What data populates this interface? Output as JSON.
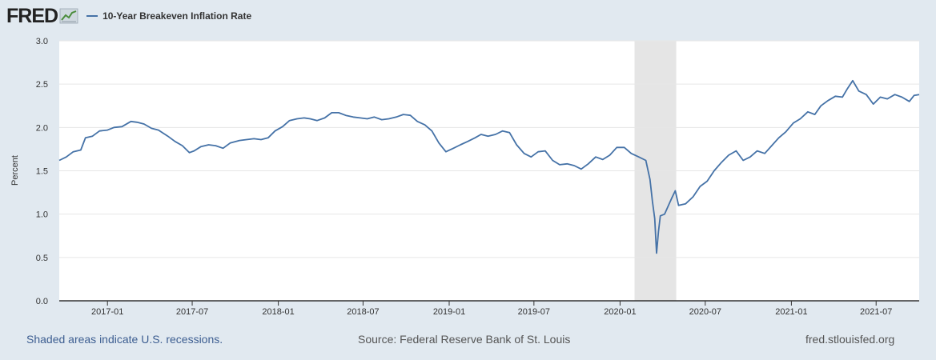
{
  "header": {
    "logo_text": "FRED",
    "logo_icon": "line-chart-icon",
    "legend_label": "10-Year Breakeven Inflation Rate"
  },
  "footer": {
    "recession_note": "Shaded areas indicate U.S. recessions.",
    "source": "Source: Federal Reserve Bank of St. Louis",
    "url": "fred.stlouisfed.org"
  },
  "colors": {
    "series": "#4572a7",
    "background": "#e1e9f0",
    "plot": "#ffffff",
    "recession": "#e5e5e5"
  },
  "chart_data": {
    "type": "line",
    "ylabel": "Percent",
    "ylim": [
      0.0,
      3.0
    ],
    "yticks": [
      0.0,
      0.5,
      1.0,
      1.5,
      2.0,
      2.5,
      3.0
    ],
    "ytick_labels": [
      "0.0",
      "0.5",
      "1.0",
      "1.5",
      "2.0",
      "2.5",
      "3.0"
    ],
    "xlim": [
      "2016-09-20",
      "2021-10-01"
    ],
    "xticks": [
      "2017-01-01",
      "2017-07-01",
      "2018-01-01",
      "2018-07-01",
      "2019-01-01",
      "2019-07-01",
      "2020-01-01",
      "2020-07-01",
      "2021-01-01",
      "2021-07-01"
    ],
    "xtick_labels": [
      "2017-01",
      "2017-07",
      "2018-01",
      "2018-07",
      "2019-01",
      "2019-07",
      "2020-01",
      "2020-07",
      "2021-01",
      "2021-07"
    ],
    "grid": "horizontal",
    "legend_placement": "top-left",
    "recessions": [
      [
        "2020-02-01",
        "2020-04-30"
      ]
    ],
    "series": [
      {
        "name": "10-Year Breakeven Inflation Rate",
        "color": "#4572a7",
        "points": [
          [
            "2016-09-20",
            1.62
          ],
          [
            "2016-10-05",
            1.66
          ],
          [
            "2016-10-20",
            1.72
          ],
          [
            "2016-11-05",
            1.74
          ],
          [
            "2016-11-15",
            1.88
          ],
          [
            "2016-11-30",
            1.9
          ],
          [
            "2016-12-15",
            1.96
          ],
          [
            "2017-01-01",
            1.97
          ],
          [
            "2017-01-15",
            2.0
          ],
          [
            "2017-02-01",
            2.01
          ],
          [
            "2017-02-20",
            2.07
          ],
          [
            "2017-03-05",
            2.06
          ],
          [
            "2017-03-20",
            2.04
          ],
          [
            "2017-04-05",
            1.99
          ],
          [
            "2017-04-20",
            1.97
          ],
          [
            "2017-05-10",
            1.9
          ],
          [
            "2017-05-25",
            1.84
          ],
          [
            "2017-06-10",
            1.79
          ],
          [
            "2017-06-25",
            1.71
          ],
          [
            "2017-07-05",
            1.73
          ],
          [
            "2017-07-20",
            1.78
          ],
          [
            "2017-08-05",
            1.8
          ],
          [
            "2017-08-20",
            1.79
          ],
          [
            "2017-09-05",
            1.76
          ],
          [
            "2017-09-20",
            1.82
          ],
          [
            "2017-10-10",
            1.85
          ],
          [
            "2017-10-25",
            1.86
          ],
          [
            "2017-11-10",
            1.87
          ],
          [
            "2017-11-25",
            1.86
          ],
          [
            "2017-12-10",
            1.88
          ],
          [
            "2017-12-25",
            1.96
          ],
          [
            "2018-01-10",
            2.01
          ],
          [
            "2018-01-25",
            2.08
          ],
          [
            "2018-02-10",
            2.1
          ],
          [
            "2018-02-25",
            2.11
          ],
          [
            "2018-03-10",
            2.1
          ],
          [
            "2018-03-25",
            2.08
          ],
          [
            "2018-04-10",
            2.11
          ],
          [
            "2018-04-25",
            2.17
          ],
          [
            "2018-05-10",
            2.17
          ],
          [
            "2018-05-25",
            2.14
          ],
          [
            "2018-06-10",
            2.12
          ],
          [
            "2018-06-25",
            2.11
          ],
          [
            "2018-07-10",
            2.1
          ],
          [
            "2018-07-25",
            2.12
          ],
          [
            "2018-08-10",
            2.09
          ],
          [
            "2018-08-25",
            2.1
          ],
          [
            "2018-09-10",
            2.12
          ],
          [
            "2018-09-25",
            2.15
          ],
          [
            "2018-10-10",
            2.14
          ],
          [
            "2018-10-25",
            2.07
          ],
          [
            "2018-11-10",
            2.03
          ],
          [
            "2018-11-25",
            1.96
          ],
          [
            "2018-12-10",
            1.82
          ],
          [
            "2018-12-25",
            1.72
          ],
          [
            "2019-01-10",
            1.76
          ],
          [
            "2019-01-25",
            1.8
          ],
          [
            "2019-02-10",
            1.84
          ],
          [
            "2019-02-25",
            1.88
          ],
          [
            "2019-03-10",
            1.92
          ],
          [
            "2019-03-25",
            1.9
          ],
          [
            "2019-04-10",
            1.92
          ],
          [
            "2019-04-25",
            1.96
          ],
          [
            "2019-05-10",
            1.94
          ],
          [
            "2019-05-25",
            1.8
          ],
          [
            "2019-06-10",
            1.7
          ],
          [
            "2019-06-25",
            1.66
          ],
          [
            "2019-07-10",
            1.72
          ],
          [
            "2019-07-25",
            1.73
          ],
          [
            "2019-08-10",
            1.62
          ],
          [
            "2019-08-25",
            1.57
          ],
          [
            "2019-09-10",
            1.58
          ],
          [
            "2019-09-25",
            1.56
          ],
          [
            "2019-10-10",
            1.52
          ],
          [
            "2019-10-25",
            1.58
          ],
          [
            "2019-11-10",
            1.66
          ],
          [
            "2019-11-25",
            1.63
          ],
          [
            "2019-12-10",
            1.68
          ],
          [
            "2019-12-25",
            1.77
          ],
          [
            "2020-01-10",
            1.77
          ],
          [
            "2020-01-25",
            1.7
          ],
          [
            "2020-02-10",
            1.66
          ],
          [
            "2020-02-25",
            1.62
          ],
          [
            "2020-03-05",
            1.4
          ],
          [
            "2020-03-10",
            1.15
          ],
          [
            "2020-03-15",
            0.95
          ],
          [
            "2020-03-19",
            0.55
          ],
          [
            "2020-03-23",
            0.8
          ],
          [
            "2020-03-27",
            0.98
          ],
          [
            "2020-04-05",
            1.0
          ],
          [
            "2020-04-20",
            1.18
          ],
          [
            "2020-04-28",
            1.27
          ],
          [
            "2020-05-05",
            1.1
          ],
          [
            "2020-05-20",
            1.12
          ],
          [
            "2020-06-05",
            1.2
          ],
          [
            "2020-06-20",
            1.32
          ],
          [
            "2020-07-05",
            1.38
          ],
          [
            "2020-07-20",
            1.5
          ],
          [
            "2020-08-05",
            1.6
          ],
          [
            "2020-08-20",
            1.68
          ],
          [
            "2020-09-05",
            1.73
          ],
          [
            "2020-09-20",
            1.62
          ],
          [
            "2020-10-05",
            1.66
          ],
          [
            "2020-10-20",
            1.73
          ],
          [
            "2020-11-05",
            1.7
          ],
          [
            "2020-11-20",
            1.79
          ],
          [
            "2020-12-05",
            1.88
          ],
          [
            "2020-12-20",
            1.95
          ],
          [
            "2021-01-05",
            2.05
          ],
          [
            "2021-01-20",
            2.1
          ],
          [
            "2021-02-05",
            2.18
          ],
          [
            "2021-02-20",
            2.15
          ],
          [
            "2021-03-05",
            2.25
          ],
          [
            "2021-03-20",
            2.31
          ],
          [
            "2021-04-05",
            2.36
          ],
          [
            "2021-04-20",
            2.35
          ],
          [
            "2021-05-01",
            2.45
          ],
          [
            "2021-05-12",
            2.54
          ],
          [
            "2021-05-25",
            2.42
          ],
          [
            "2021-06-10",
            2.38
          ],
          [
            "2021-06-25",
            2.27
          ],
          [
            "2021-07-10",
            2.35
          ],
          [
            "2021-07-25",
            2.33
          ],
          [
            "2021-08-10",
            2.38
          ],
          [
            "2021-08-25",
            2.35
          ],
          [
            "2021-09-10",
            2.3
          ],
          [
            "2021-09-20",
            2.37
          ],
          [
            "2021-10-01",
            2.38
          ]
        ]
      }
    ]
  }
}
